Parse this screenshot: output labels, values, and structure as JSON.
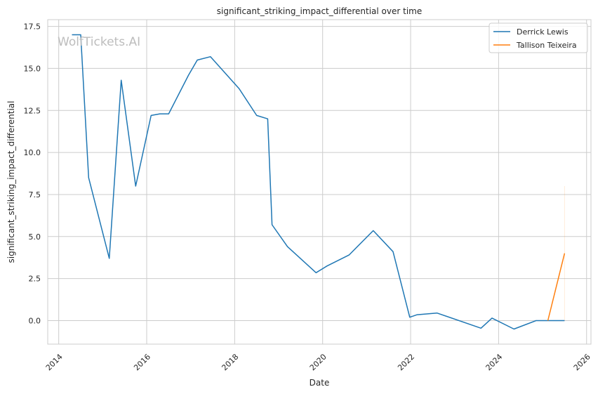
{
  "chart_data": {
    "type": "line",
    "title": "significant_striking_impact_differential over time",
    "xlabel": "Date",
    "ylabel": "significant_striking_impact_differential",
    "watermark": "WolfTickets.AI",
    "xlim": [
      2013.75,
      2026.1
    ],
    "ylim": [
      -1.4,
      17.9
    ],
    "x_ticks": [
      2014,
      2016,
      2018,
      2020,
      2022,
      2024,
      2026
    ],
    "x_tick_labels": [
      "2014",
      "2016",
      "2018",
      "2020",
      "2022",
      "2024",
      "2026"
    ],
    "y_ticks": [
      0.0,
      2.5,
      5.0,
      7.5,
      10.0,
      12.5,
      15.0,
      17.5
    ],
    "y_tick_labels": [
      "0.0",
      "2.5",
      "5.0",
      "7.5",
      "10.0",
      "12.5",
      "15.0",
      "17.5"
    ],
    "grid": true,
    "legend_position": "top-right",
    "series": [
      {
        "name": "Derrick Lewis",
        "color": "#1f77b4",
        "x": [
          2014.3,
          2014.5,
          2014.68,
          2015.15,
          2015.42,
          2015.75,
          2016.1,
          2016.3,
          2016.5,
          2016.95,
          2017.15,
          2017.45,
          2018.1,
          2018.5,
          2018.75,
          2018.85,
          2019.2,
          2019.85,
          2020.1,
          2020.6,
          2021.15,
          2021.6,
          2021.98,
          2022.15,
          2022.6,
          2023.6,
          2023.85,
          2024.35,
          2024.85,
          2025.5
        ],
        "y": [
          17.0,
          17.0,
          8.5,
          3.7,
          14.3,
          8.0,
          12.2,
          12.3,
          12.3,
          14.6,
          15.5,
          15.7,
          13.8,
          12.2,
          12.0,
          5.7,
          4.4,
          2.85,
          3.25,
          3.9,
          5.35,
          4.1,
          0.2,
          0.35,
          0.45,
          -0.45,
          0.15,
          -0.5,
          0.0,
          0.0
        ]
      },
      {
        "name": "Tallison Teixeira",
        "color": "#ff7f0e",
        "x": [
          2025.12,
          2025.5
        ],
        "y": [
          0.0,
          4.0
        ]
      }
    ]
  }
}
